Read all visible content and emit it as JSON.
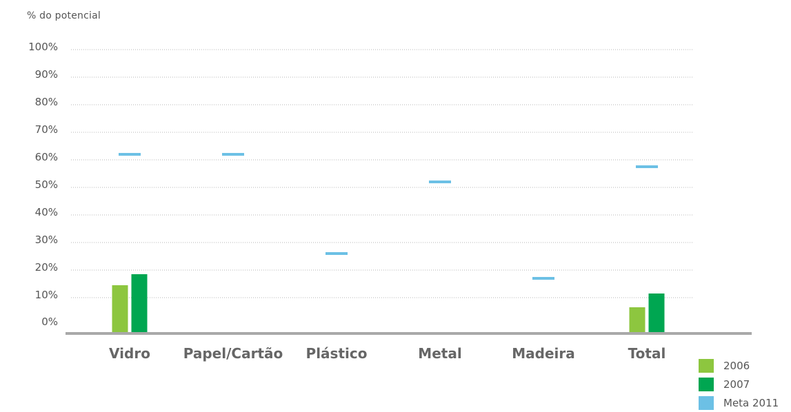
{
  "chart_data": {
    "type": "bar",
    "ylabel": "% do potencial",
    "categories": [
      "Vidro",
      "Papel/Cartão",
      "Plástico",
      "Metal",
      "Madeira",
      "Total"
    ],
    "yticks": [
      "0%",
      "10%",
      "20%",
      "30%",
      "40%",
      "50%",
      "60%",
      "70%",
      "80%",
      "90%",
      "100%"
    ],
    "ylim": [
      0,
      100
    ],
    "grid": true,
    "legend_position": "bottom-right",
    "series": [
      {
        "name": "2006",
        "kind": "bar",
        "color": "#8dc63f",
        "values": [
          14.5,
          null,
          null,
          null,
          null,
          6.5
        ]
      },
      {
        "name": "2007",
        "kind": "bar",
        "color": "#00a651",
        "values": [
          18.5,
          null,
          null,
          null,
          null,
          11.5
        ]
      },
      {
        "name": "Meta 2011",
        "kind": "marker",
        "color": "#6cc0e5",
        "values": [
          62,
          62,
          26,
          52,
          17,
          57.5
        ]
      }
    ]
  }
}
